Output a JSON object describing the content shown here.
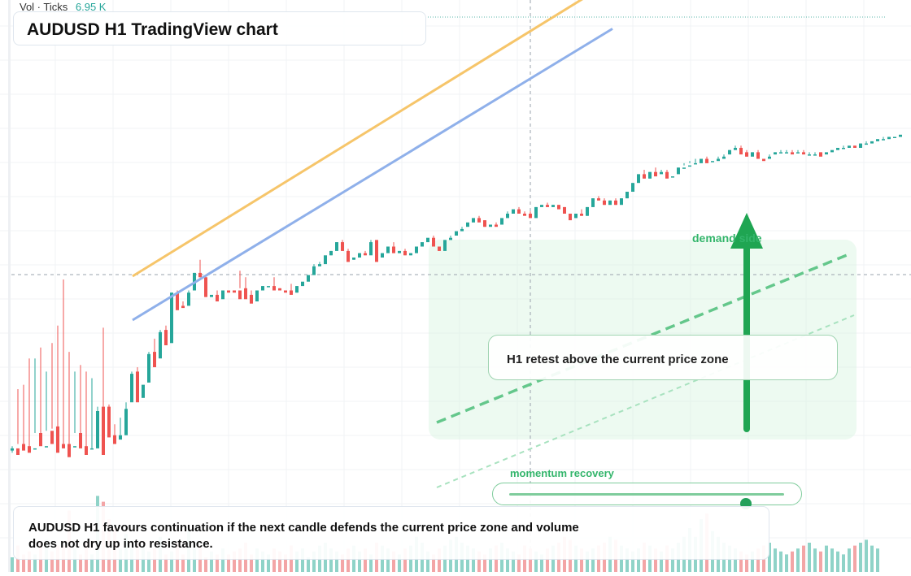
{
  "header": {
    "vol_label": "Vol · Ticks",
    "vol_value": "6.95 K"
  },
  "title": "AUDUSD H1 TradingView chart",
  "annotations": {
    "demand_label": "demand side",
    "callout": "H1 retest above the current price zone",
    "momentum_label": "momentum recovery",
    "momentum_level": 0.86,
    "summary": "AUDUSD H1 favours continuation if the next candle defends the current price zone and volume does not dry up into resistance."
  },
  "colors": {
    "bull": "#26a69a",
    "bear": "#ef5350",
    "orange_line": "#f6c56a",
    "blue_line": "#8fb0ea",
    "accent_green": "#1fa552",
    "vol_bull": "#8fd3c8",
    "vol_bear": "#f3a5a6"
  },
  "chart_data": {
    "type": "candlestick",
    "symbol": "AUDUSD",
    "timeframe": "H1",
    "y_range": [
      0,
      700
    ],
    "x_range": [
      0,
      155
    ],
    "ohlc": [
      [
        2,
        4,
        1,
        3
      ],
      [
        3,
        30,
        5,
        0
      ],
      [
        5,
        32,
        5,
        2
      ],
      [
        4,
        44,
        3,
        1
      ],
      [
        3,
        44,
        10,
        3
      ],
      [
        10,
        49,
        5,
        4
      ],
      [
        4,
        38,
        11,
        4
      ],
      [
        11,
        51,
        12,
        5
      ],
      [
        13,
        59,
        5,
        1
      ],
      [
        5,
        80,
        5,
        3
      ],
      [
        5,
        47,
        4,
        -1
      ],
      [
        4,
        38,
        10,
        4
      ],
      [
        10,
        41,
        4,
        3
      ],
      [
        4,
        38,
        3,
        0
      ],
      [
        3,
        35,
        3,
        3
      ],
      [
        3,
        20,
        22,
        20
      ],
      [
        22,
        58,
        22,
        0
      ],
      [
        22,
        23,
        9,
        8
      ],
      [
        9,
        14,
        7,
        5
      ],
      [
        7,
        17,
        9,
        9
      ],
      [
        9,
        15,
        24,
        21
      ],
      [
        24,
        25,
        38,
        37
      ],
      [
        38,
        40,
        26,
        24
      ],
      [
        26,
        33,
        33,
        32
      ],
      [
        33,
        34,
        47,
        46
      ],
      [
        47,
        53,
        44,
        40
      ],
      [
        44,
        50,
        57,
        56
      ],
      [
        57,
        59,
        51,
        50
      ],
      [
        51,
        56,
        74,
        74
      ],
      [
        74,
        75,
        68,
        66
      ],
      [
        68,
        70,
        68,
        67
      ],
      [
        68,
        69,
        75,
        74
      ],
      [
        75,
        78,
        83,
        83
      ],
      [
        83,
        89,
        81,
        81
      ],
      [
        81,
        82,
        72,
        72
      ],
      [
        72,
        73,
        73,
        73
      ],
      [
        73,
        75,
        71,
        70
      ],
      [
        71,
        72,
        75,
        75
      ],
      [
        75,
        75,
        75,
        74
      ],
      [
        75,
        75,
        75,
        74
      ],
      [
        75,
        84,
        76,
        71
      ],
      [
        76,
        81,
        73,
        71
      ],
      [
        73,
        75,
        70,
        69
      ],
      [
        70,
        70,
        75,
        75
      ],
      [
        75,
        75,
        77,
        77
      ],
      [
        77,
        77,
        77,
        77
      ],
      [
        77,
        81,
        76,
        75
      ],
      [
        76,
        76,
        75,
        75
      ],
      [
        75,
        75,
        75,
        74
      ],
      [
        75,
        78,
        74,
        73
      ],
      [
        74,
        74,
        77,
        77
      ],
      [
        77,
        79,
        79,
        79
      ],
      [
        79,
        81,
        82,
        82
      ],
      [
        82,
        87,
        86,
        86
      ],
      [
        86,
        88,
        87,
        87
      ],
      [
        87,
        91,
        91,
        91
      ],
      [
        91,
        91,
        93,
        93
      ],
      [
        93,
        96,
        97,
        97
      ],
      [
        97,
        98,
        93,
        93
      ],
      [
        93,
        94,
        89,
        88
      ],
      [
        89,
        89,
        90,
        90
      ],
      [
        90,
        91,
        92,
        92
      ],
      [
        92,
        93,
        91,
        91
      ],
      [
        91,
        95,
        98,
        97
      ],
      [
        98,
        98,
        90,
        88
      ],
      [
        90,
        90,
        92,
        92
      ],
      [
        92,
        95,
        95,
        95
      ],
      [
        95,
        97,
        92,
        92
      ],
      [
        92,
        92,
        93,
        93
      ],
      [
        93,
        94,
        91,
        91
      ],
      [
        91,
        91,
        92,
        92
      ],
      [
        92,
        94,
        95,
        95
      ],
      [
        95,
        97,
        97,
        97
      ],
      [
        97,
        99,
        99,
        99
      ],
      [
        99,
        100,
        95,
        95
      ],
      [
        95,
        95,
        93,
        93
      ],
      [
        93,
        94,
        98,
        98
      ],
      [
        98,
        99,
        100,
        99
      ],
      [
        100,
        102,
        102,
        102
      ],
      [
        102,
        103,
        104,
        103
      ],
      [
        104,
        106,
        106,
        106
      ],
      [
        106,
        108,
        108,
        108
      ],
      [
        108,
        109,
        107,
        106
      ],
      [
        107,
        107,
        104,
        104
      ],
      [
        104,
        105,
        105,
        105
      ],
      [
        105,
        106,
        105,
        104
      ],
      [
        105,
        108,
        108,
        108
      ],
      [
        108,
        111,
        110,
        110
      ],
      [
        110,
        112,
        112,
        112
      ],
      [
        112,
        113,
        110,
        110
      ],
      [
        110,
        111,
        110,
        109
      ],
      [
        110,
        111,
        108,
        108
      ],
      [
        108,
        109,
        113,
        113
      ],
      [
        113,
        113,
        114,
        114
      ],
      [
        114,
        115,
        113,
        113
      ],
      [
        113,
        113,
        114,
        114
      ],
      [
        114,
        114,
        113,
        112
      ],
      [
        113,
        113,
        110,
        110
      ],
      [
        110,
        110,
        108,
        107
      ],
      [
        108,
        108,
        110,
        110
      ],
      [
        110,
        112,
        109,
        109
      ],
      [
        109,
        109,
        113,
        113
      ],
      [
        113,
        113,
        117,
        117
      ],
      [
        117,
        118,
        116,
        116
      ],
      [
        116,
        117,
        114,
        114
      ],
      [
        114,
        115,
        116,
        116
      ],
      [
        116,
        117,
        114,
        114
      ],
      [
        114,
        115,
        117,
        117
      ],
      [
        117,
        117,
        120,
        120
      ],
      [
        120,
        121,
        124,
        124
      ],
      [
        124,
        126,
        128,
        128
      ],
      [
        128,
        130,
        126,
        126
      ],
      [
        126,
        126,
        129,
        129
      ],
      [
        129,
        131,
        128,
        127
      ],
      [
        128,
        130,
        129,
        129
      ],
      [
        129,
        130,
        127,
        126
      ],
      [
        127,
        128,
        128,
        127
      ],
      [
        128,
        130,
        131,
        131
      ],
      [
        131,
        133,
        132,
        131
      ],
      [
        132,
        134,
        133,
        132
      ],
      [
        133,
        135,
        133,
        133
      ],
      [
        133,
        135,
        135,
        135
      ],
      [
        135,
        136,
        134,
        133
      ],
      [
        134,
        134,
        134,
        134
      ],
      [
        134,
        136,
        135,
        135
      ],
      [
        135,
        135,
        137,
        136
      ],
      [
        137,
        137,
        139,
        139
      ],
      [
        139,
        141,
        140,
        140
      ],
      [
        140,
        141,
        138,
        137
      ],
      [
        138,
        139,
        136,
        136
      ],
      [
        136,
        137,
        138,
        138
      ],
      [
        138,
        139,
        135,
        135
      ],
      [
        135,
        135,
        135,
        134
      ],
      [
        135,
        135,
        137,
        136
      ],
      [
        137,
        137,
        138,
        138
      ],
      [
        138,
        139,
        138,
        138
      ],
      [
        138,
        139,
        138,
        138
      ],
      [
        138,
        139,
        138,
        137
      ],
      [
        138,
        139,
        138,
        138
      ],
      [
        138,
        139,
        137,
        137
      ],
      [
        137,
        138,
        137,
        137
      ],
      [
        137,
        137,
        138,
        137
      ],
      [
        138,
        138,
        137,
        136
      ],
      [
        137,
        138,
        138,
        138
      ],
      [
        138,
        139,
        139,
        139
      ],
      [
        139,
        140,
        140,
        140
      ],
      [
        140,
        141,
        140,
        140
      ],
      [
        140,
        141,
        141,
        141
      ],
      [
        141,
        141,
        140,
        140
      ],
      [
        140,
        141,
        142,
        142
      ],
      [
        142,
        143,
        142,
        142
      ],
      [
        142,
        143,
        143,
        143
      ],
      [
        143,
        144,
        144,
        144
      ],
      [
        144,
        145,
        144,
        144
      ],
      [
        144,
        145,
        145,
        145
      ],
      [
        145,
        145,
        145,
        145
      ],
      [
        145,
        146,
        146,
        146
      ]
    ],
    "volume": [
      5,
      9,
      6,
      7,
      6,
      10,
      11,
      7,
      9,
      9,
      21,
      8,
      6,
      10,
      6,
      26,
      24,
      18,
      15,
      8,
      13,
      8,
      10,
      9,
      7,
      8,
      12,
      6,
      7,
      10,
      6,
      15,
      8,
      9,
      5,
      7,
      6,
      8,
      6,
      7,
      8,
      10,
      6,
      8,
      7,
      6,
      8,
      7,
      6,
      9,
      7,
      8,
      5,
      7,
      9,
      10,
      8,
      7,
      6,
      8,
      9,
      7,
      8,
      6,
      10,
      9,
      8,
      7,
      6,
      8,
      9,
      12,
      10,
      7,
      6,
      8,
      9,
      11,
      12,
      10,
      9,
      8,
      7,
      6,
      8,
      9,
      10,
      8,
      7,
      6,
      9,
      8,
      7,
      6,
      8,
      9,
      10,
      12,
      11,
      9,
      8,
      7,
      8,
      9,
      10,
      12,
      11,
      9,
      8,
      7,
      8,
      10,
      9,
      8,
      7,
      9,
      8,
      10,
      12,
      15,
      12,
      18,
      20,
      14,
      12,
      10,
      9,
      8,
      7,
      6,
      7,
      8,
      9,
      10,
      8,
      7,
      6,
      7,
      8,
      9,
      10,
      8,
      7,
      9,
      8,
      7,
      6,
      8,
      9,
      10,
      11,
      9,
      8
    ],
    "trend_lines": [
      {
        "from": [
          14,
          100
        ],
        "to": [
          105,
          220
        ]
      },
      {
        "from": [
          14,
          80
        ],
        "to": [
          105,
          198
        ]
      }
    ]
  }
}
